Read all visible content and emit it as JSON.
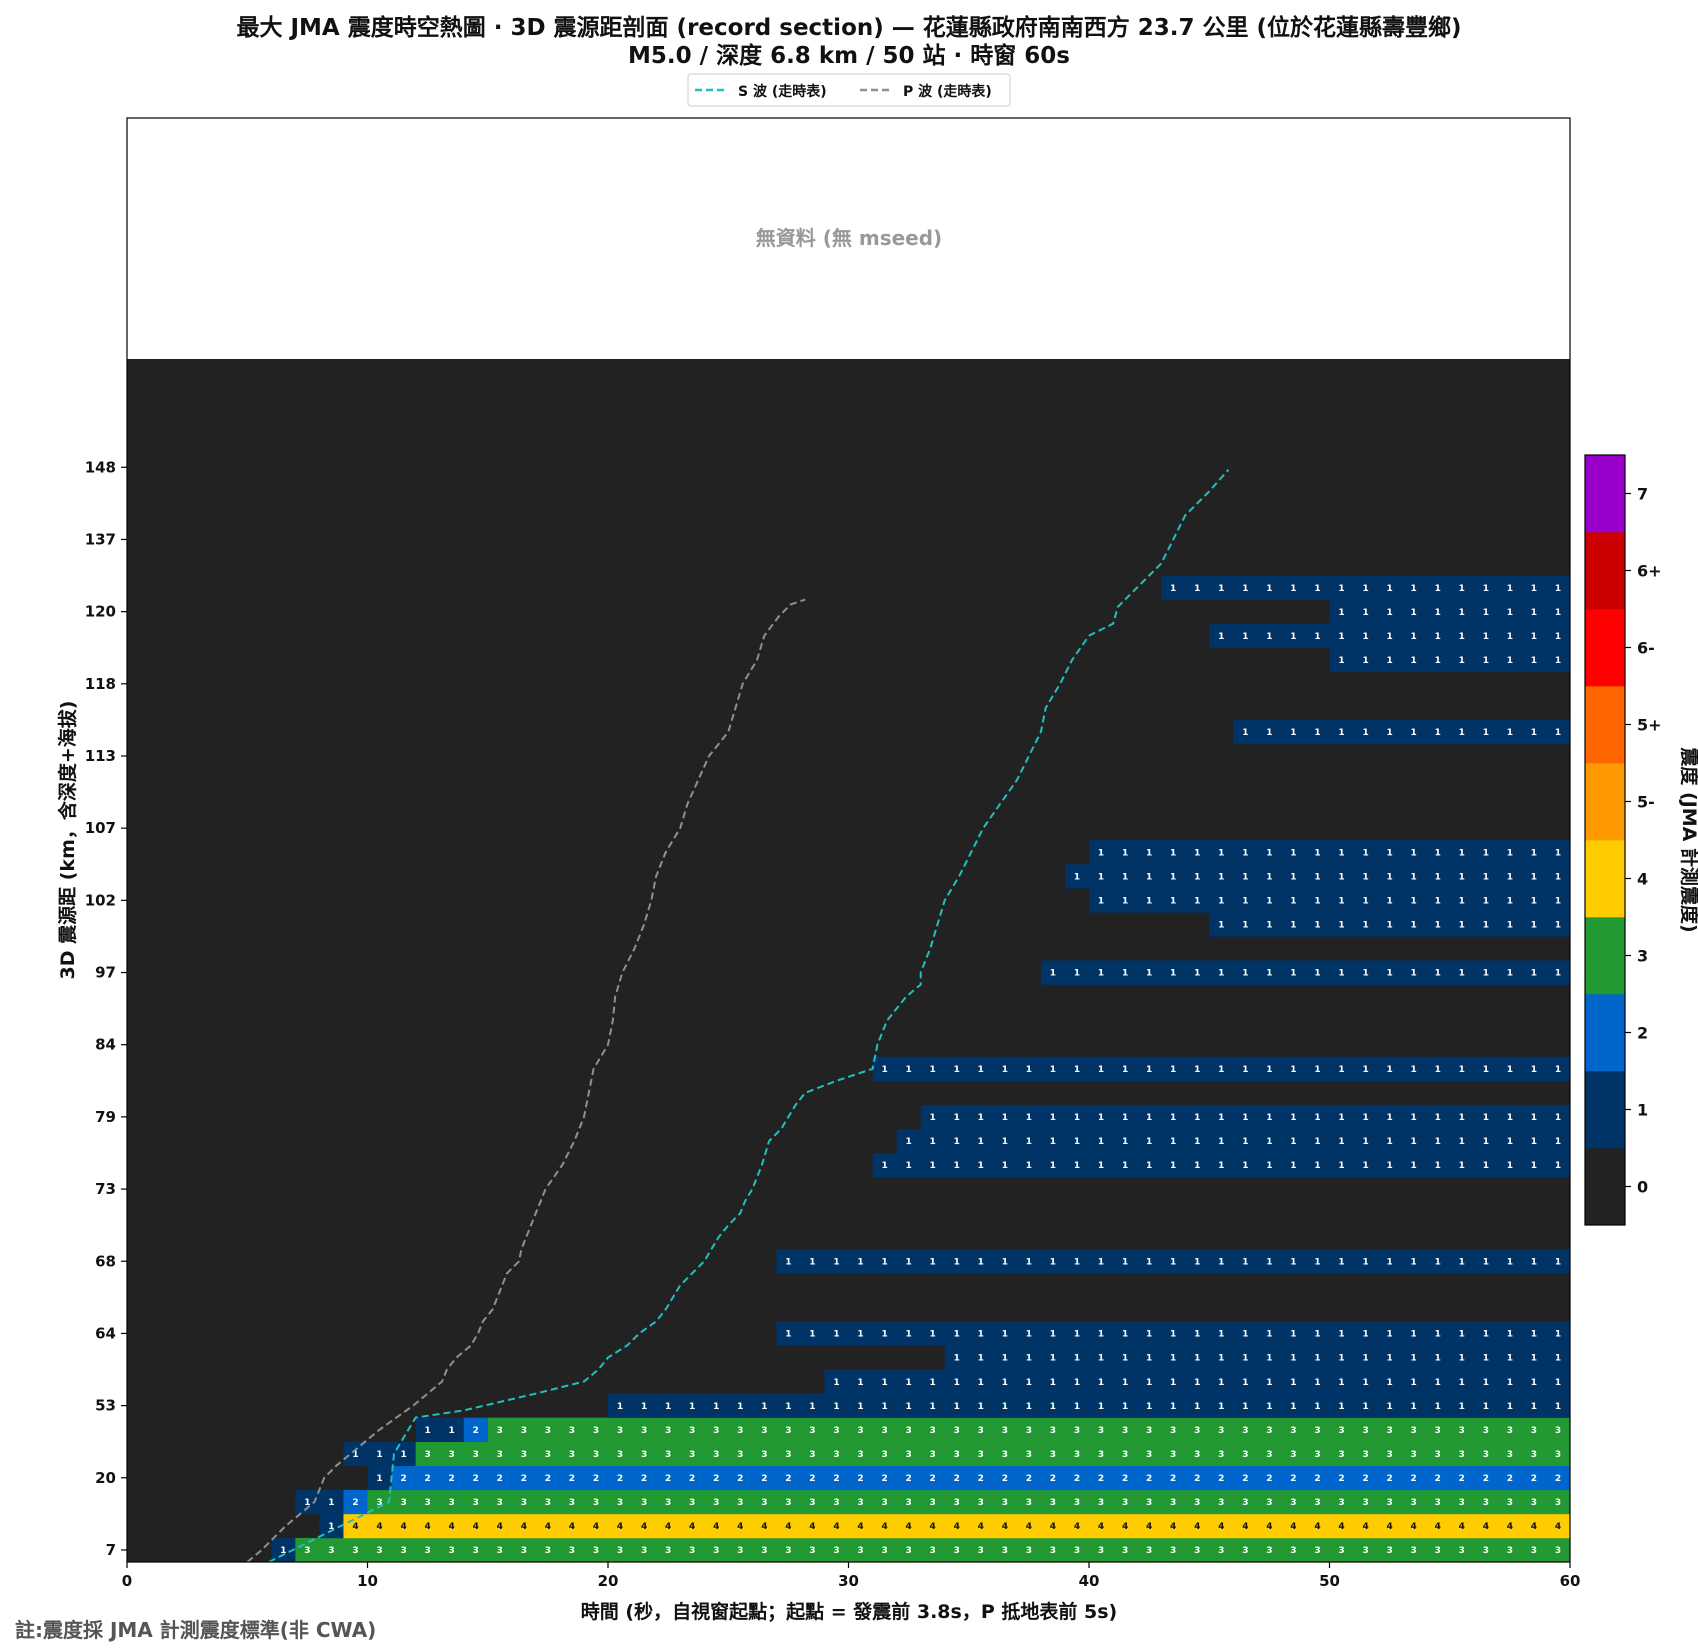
{
  "chart_data": {
    "type": "heatmap",
    "title_line1": "最大 JMA 震度時空熱圖 · 3D 震源距剖面 (record section) — 花蓮縣政府南南西方  23.7  公里 (位於花蓮縣壽豐鄉)",
    "title_line2": "M5.0 / 深度 6.8 km / 50 站 · 時窗 60s",
    "xlabel": "時間 (秒，自視窗起點；起點 = 發震前 3.8s，P 抵地表前 5s)",
    "ylabel": "3D 震源距 (km，含深度+海拔)",
    "colorbar_label": "震度 (JMA 計測震度)",
    "no_data_text": "無資料 (無 mseed)",
    "footnote": "註:震度採 JMA 計測震度標準(非 CWA)",
    "legend": {
      "placement": "top-center",
      "entries": [
        {
          "label": "S 波 (走時表)",
          "color": "#20c0c0"
        },
        {
          "label": "P 波 (走時表)",
          "color": "#909090"
        }
      ]
    },
    "xlim": [
      0,
      60
    ],
    "x_ticks": [
      "0",
      "10",
      "20",
      "30",
      "40",
      "50",
      "60"
    ],
    "y_tick_labels": [
      "7",
      "20",
      "53",
      "64",
      "68",
      "73",
      "79",
      "84",
      "97",
      "102",
      "107",
      "113",
      "118",
      "120",
      "137",
      "148"
    ],
    "colorbar": {
      "levels": [
        "0",
        "1",
        "2",
        "3",
        "4",
        "5-",
        "5+",
        "6-",
        "6+",
        "7"
      ],
      "colors": [
        "#222222",
        "#003366",
        "#0066cc",
        "#229933",
        "#ffcc00",
        "#ff9900",
        "#ff6600",
        "#ff0000",
        "#cc0000",
        "#9900cc"
      ]
    },
    "time_bins": 60,
    "rows": [
      {
        "segments": [
          [
            6,
            7,
            "1"
          ],
          [
            7,
            60,
            "3"
          ]
        ]
      },
      {
        "segments": [
          [
            8,
            9,
            "1"
          ],
          [
            9,
            60,
            "4"
          ]
        ]
      },
      {
        "segments": [
          [
            7,
            9,
            "1"
          ],
          [
            9,
            10,
            "2"
          ],
          [
            10,
            60,
            "3"
          ]
        ]
      },
      {
        "segments": [
          [
            10,
            11,
            "1"
          ],
          [
            11,
            60,
            "2"
          ]
        ]
      },
      {
        "segments": [
          [
            9,
            12,
            "1"
          ],
          [
            12,
            60,
            "3"
          ]
        ]
      },
      {
        "segments": [
          [
            12,
            14,
            "1"
          ],
          [
            14,
            15,
            "2"
          ],
          [
            15,
            60,
            "3"
          ]
        ]
      },
      {
        "segments": [
          [
            20,
            60,
            "1"
          ]
        ]
      },
      {
        "segments": [
          [
            29,
            60,
            "1"
          ]
        ]
      },
      {
        "segments": [
          [
            34,
            60,
            "1"
          ]
        ]
      },
      {
        "segments": [
          [
            27,
            60,
            "1"
          ]
        ]
      },
      {
        "segments": []
      },
      {
        "segments": []
      },
      {
        "segments": [
          [
            27,
            60,
            "1"
          ]
        ]
      },
      {
        "segments": []
      },
      {
        "segments": []
      },
      {
        "segments": []
      },
      {
        "segments": [
          [
            31,
            60,
            "1"
          ]
        ]
      },
      {
        "segments": [
          [
            32,
            60,
            "1"
          ]
        ]
      },
      {
        "segments": [
          [
            33,
            60,
            "1"
          ]
        ]
      },
      {
        "segments": []
      },
      {
        "segments": [
          [
            31,
            60,
            "1"
          ]
        ]
      },
      {
        "segments": []
      },
      {
        "segments": []
      },
      {
        "segments": []
      },
      {
        "segments": [
          [
            38,
            60,
            "1"
          ]
        ]
      },
      {
        "segments": []
      },
      {
        "segments": [
          [
            45,
            60,
            "1"
          ]
        ]
      },
      {
        "segments": [
          [
            40,
            60,
            "1"
          ]
        ]
      },
      {
        "segments": [
          [
            39,
            60,
            "1"
          ]
        ]
      },
      {
        "segments": [
          [
            40,
            60,
            "1"
          ]
        ]
      },
      {
        "segments": []
      },
      {
        "segments": []
      },
      {
        "segments": []
      },
      {
        "segments": []
      },
      {
        "segments": [
          [
            46,
            60,
            "1"
          ]
        ]
      },
      {
        "segments": []
      },
      {
        "segments": []
      },
      {
        "segments": [
          [
            50,
            60,
            "1"
          ]
        ]
      },
      {
        "segments": [
          [
            45,
            60,
            "1"
          ]
        ]
      },
      {
        "segments": [
          [
            50,
            60,
            "1"
          ]
        ]
      },
      {
        "segments": [
          [
            43,
            60,
            "1"
          ]
        ]
      },
      {
        "segments": []
      },
      {
        "segments": []
      },
      {
        "segments": []
      },
      {
        "segments": []
      },
      {
        "segments": []
      },
      {
        "segments": []
      },
      {
        "segments": []
      },
      {
        "segments": []
      },
      {
        "segments": []
      }
    ],
    "p_wave_x": [
      5.0,
      5.6,
      6.1,
      6.6,
      7.2,
      7.8,
      8.0,
      8.2,
      8.7,
      9.3,
      9.9,
      10.5,
      11.2,
      11.9,
      12.5,
      13.1,
      13.3,
      13.7,
      14.3,
      14.6,
      14.8,
      15.2,
      15.4,
      15.6,
      15.8,
      16.3,
      16.4,
      16.6,
      16.8,
      17.0,
      17.2,
      17.4,
      18.1,
      18.6,
      19.0,
      19.2,
      19.4,
      20.0,
      20.2,
      20.3,
      20.6,
      21.1,
      21.5,
      21.8,
      22.0,
      22.4,
      23.0,
      23.3,
      24.2,
      25.0,
      25.3,
      25.6,
      26.2,
      26.5,
      27.1,
      27.6,
      28.2
    ],
    "p_wave_rows": [
      -0.5,
      0.0,
      0.5,
      1.0,
      1.5,
      2.0,
      2.5,
      3.0,
      3.5,
      4.0,
      4.5,
      5.0,
      5.5,
      6.0,
      6.5,
      7.0,
      7.5,
      8.0,
      8.5,
      9.0,
      9.5,
      10.0,
      10.5,
      11.0,
      11.5,
      12.0,
      12.5,
      13.0,
      13.5,
      14.0,
      14.5,
      15.0,
      16.0,
      17.0,
      18.0,
      19.0,
      20.0,
      21.0,
      22.0,
      23.0,
      24.0,
      25.0,
      26.0,
      27.0,
      28.0,
      29.0,
      30.0,
      31.0,
      33.0,
      34.0,
      35.0,
      36.0,
      37.0,
      38.0,
      38.8,
      39.3,
      39.5
    ],
    "s_wave_x": [
      5.9,
      6.9,
      7.9,
      8.9,
      9.9,
      10.9,
      11.1,
      12.0,
      14.0,
      17.0,
      19.0,
      19.6,
      20.0,
      20.8,
      21.3,
      22.0,
      22.4,
      23.0,
      23.5,
      24.0,
      24.3,
      24.6,
      25.0,
      25.5,
      25.7,
      26.0,
      26.4,
      26.7,
      27.2,
      27.5,
      27.8,
      28.2,
      29.5,
      31.0,
      31.2,
      31.6,
      32.4,
      33.0,
      33.0,
      33.4,
      33.7,
      34.0,
      34.6,
      35.1,
      35.6,
      36.3,
      37.0,
      37.5,
      38.0,
      38.2,
      38.8,
      39.3,
      40.0,
      40.4,
      41.0,
      41.2,
      42.0,
      43.0,
      43.5,
      44.0,
      45.0,
      45.8
    ],
    "s_wave_rows": [
      -0.5,
      0.0,
      0.5,
      1.0,
      1.5,
      2.0,
      4.0,
      5.5,
      5.8,
      6.5,
      7.0,
      7.5,
      8.0,
      8.5,
      9.0,
      9.5,
      10.0,
      11.0,
      11.5,
      12.0,
      12.5,
      13.0,
      13.5,
      14.0,
      14.5,
      15.0,
      16.0,
      17.0,
      17.5,
      18.0,
      18.5,
      19.0,
      19.5,
      20.0,
      21.0,
      22.0,
      23.0,
      23.5,
      24.0,
      25.0,
      26.0,
      27.0,
      28.0,
      29.0,
      30.0,
      31.0,
      32.0,
      33.0,
      34.0,
      35.0,
      36.0,
      37.0,
      38.0,
      38.2,
      38.5,
      39.2,
      40.0,
      41.0,
      42.0,
      43.0,
      44.0,
      44.9
    ]
  }
}
